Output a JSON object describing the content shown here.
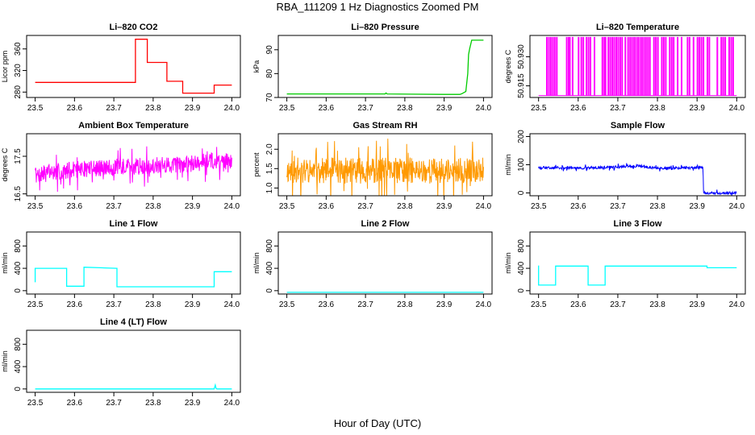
{
  "page": {
    "title": "RBA_111209  1 Hz Diagnostics Zoomed PM",
    "xlabel": "Hour of Day (UTC)"
  },
  "chart_data": [
    {
      "type": "line",
      "title": "Li–820 CO2",
      "xlabel": "",
      "ylabel": "Licor ppm",
      "xlim": [
        23.5,
        24.0
      ],
      "ylim": [
        270,
        385
      ],
      "xticks": [
        23.5,
        23.6,
        23.7,
        23.8,
        23.9,
        24.0
      ],
      "xtick_labels": [
        "23.5",
        "23.6",
        "23.7",
        "23.8",
        "23.9",
        "24.0"
      ],
      "yticks": [
        280,
        320,
        360
      ],
      "ytick_labels": [
        "280",
        "320",
        "360"
      ],
      "series": [
        {
          "name": "CO2",
          "color": "#ff0000",
          "style": "line",
          "x": [
            23.5,
            23.755,
            23.755,
            23.785,
            23.785,
            23.835,
            23.835,
            23.875,
            23.875,
            23.955,
            23.955,
            24.0
          ],
          "y": [
            298,
            298,
            378,
            378,
            335,
            335,
            300,
            300,
            278,
            278,
            293,
            293
          ]
        }
      ]
    },
    {
      "type": "line",
      "title": "Li–820 Pressure",
      "xlabel": "",
      "ylabel": "kPa",
      "xlim": [
        23.5,
        24.0
      ],
      "ylim": [
        70,
        96
      ],
      "xticks": [
        23.5,
        23.6,
        23.7,
        23.8,
        23.9,
        24.0
      ],
      "xtick_labels": [
        "23.5",
        "23.6",
        "23.7",
        "23.8",
        "23.9",
        "24.0"
      ],
      "yticks": [
        70,
        80,
        90
      ],
      "ytick_labels": [
        "70",
        "80",
        "90"
      ],
      "series": [
        {
          "name": "Pressure",
          "color": "#00cc00",
          "style": "line",
          "x": [
            23.5,
            23.75,
            23.752,
            23.755,
            23.9,
            23.94,
            23.945,
            23.955,
            23.96,
            23.962,
            23.965,
            23.97,
            24.0
          ],
          "y": [
            71.5,
            71.5,
            71.9,
            71.5,
            71.3,
            71.3,
            71.6,
            72.5,
            80,
            88,
            90.5,
            94,
            94
          ]
        }
      ]
    },
    {
      "type": "line",
      "title": "Li–820 Temperature",
      "xlabel": "",
      "ylabel": "degrees C",
      "xlim": [
        23.5,
        24.0
      ],
      "ylim": [
        50.909,
        50.941
      ],
      "xticks": [
        23.5,
        23.6,
        23.7,
        23.8,
        23.9,
        24.0
      ],
      "xtick_labels": [
        "23.5",
        "23.6",
        "23.7",
        "23.8",
        "23.9",
        "24.0"
      ],
      "yticks": [
        50.915,
        50.93
      ],
      "ytick_labels": [
        "50.915",
        "50.930"
      ],
      "series": [
        {
          "name": "Temperature",
          "color": "#ff00ff",
          "style": "toggle",
          "levels": [
            50.91,
            50.94
          ],
          "high_x": [
            23.52,
            23.525,
            23.53,
            23.535,
            23.54,
            23.545,
            23.57,
            23.575,
            23.578,
            23.585,
            23.6,
            23.607,
            23.612,
            23.62,
            23.625,
            23.63,
            23.64,
            23.66,
            23.665,
            23.668,
            23.675,
            23.68,
            23.685,
            23.69,
            23.695,
            23.7,
            23.705,
            23.71,
            23.718,
            23.725,
            23.73,
            23.735,
            23.74,
            23.745,
            23.75,
            23.755,
            23.76,
            23.765,
            23.77,
            23.775,
            23.78,
            23.79,
            23.795,
            23.8,
            23.81,
            23.815,
            23.82,
            23.83,
            23.835,
            23.84,
            23.85,
            23.86,
            23.875,
            23.88,
            23.89,
            23.9,
            23.905,
            23.91,
            23.915,
            23.925,
            23.93,
            23.95,
            23.96,
            23.965,
            23.97,
            23.98,
            23.985,
            23.99
          ]
        }
      ]
    },
    {
      "type": "line",
      "title": "Ambient Box Temperature",
      "xlabel": "",
      "ylabel": "degrees C",
      "xlim": [
        23.5,
        24.0
      ],
      "ylim": [
        16.45,
        18.1
      ],
      "xticks": [
        23.5,
        23.6,
        23.7,
        23.8,
        23.9,
        24.0
      ],
      "xtick_labels": [
        "23.5",
        "23.6",
        "23.7",
        "23.8",
        "23.9",
        "24.0"
      ],
      "yticks": [
        16.5,
        17.5
      ],
      "ytick_labels": [
        "16.5",
        "17.5"
      ],
      "series": [
        {
          "name": "Ambient",
          "color": "#ff00ff",
          "style": "noisy",
          "x": [
            23.5,
            23.6,
            23.7,
            23.8,
            23.9,
            23.95,
            24.0
          ],
          "y": [
            17.0,
            17.15,
            17.2,
            17.25,
            17.3,
            17.4,
            17.35
          ],
          "noise": 0.28,
          "seed": 7
        }
      ]
    },
    {
      "type": "line",
      "title": "Gas Stream RH",
      "xlabel": "",
      "ylabel": "percent",
      "xlim": [
        23.5,
        24.0
      ],
      "ylim": [
        0.8,
        2.4
      ],
      "xticks": [
        23.5,
        23.6,
        23.7,
        23.8,
        23.9,
        24.0
      ],
      "xtick_labels": [
        "23.5",
        "23.6",
        "23.7",
        "23.8",
        "23.9",
        "24.0"
      ],
      "yticks": [
        1.0,
        1.5,
        2.0
      ],
      "ytick_labels": [
        "1.0",
        "1.5",
        "2.0"
      ],
      "series": [
        {
          "name": "RH",
          "color": "#ff9900",
          "style": "noisy",
          "x": [
            23.5,
            24.0
          ],
          "y": [
            1.45,
            1.45
          ],
          "noise": 0.42,
          "seed": 11
        }
      ]
    },
    {
      "type": "line",
      "title": "Sample Flow",
      "xlabel": "",
      "ylabel": "ml/min",
      "xlim": [
        23.5,
        24.0
      ],
      "ylim": [
        -10,
        210
      ],
      "xticks": [
        23.5,
        23.6,
        23.7,
        23.8,
        23.9,
        24.0
      ],
      "xtick_labels": [
        "23.5",
        "23.6",
        "23.7",
        "23.8",
        "23.9",
        "24.0"
      ],
      "yticks": [
        0,
        100,
        200
      ],
      "ytick_labels": [
        "0",
        "100",
        "200"
      ],
      "series": [
        {
          "name": "Sample Flow",
          "color": "#0000ff",
          "style": "noisy",
          "x": [
            23.5,
            23.6,
            23.7,
            23.75,
            23.8,
            23.915,
            23.916,
            24.0
          ],
          "y": [
            90,
            88,
            92,
            96,
            88,
            90,
            0,
            0
          ],
          "noise": 6,
          "seed": 3
        }
      ]
    },
    {
      "type": "line",
      "title": "Line 1 Flow",
      "xlabel": "",
      "ylabel": "ml/min",
      "xlim": [
        23.5,
        24.0
      ],
      "ylim": [
        -60,
        1050
      ],
      "xticks": [
        23.5,
        23.6,
        23.7,
        23.8,
        23.9,
        24.0
      ],
      "xtick_labels": [
        "23.5",
        "23.6",
        "23.7",
        "23.8",
        "23.9",
        "24.0"
      ],
      "yticks": [
        0,
        400,
        800
      ],
      "ytick_labels": [
        "0",
        "400",
        "800"
      ],
      "series": [
        {
          "name": "Line 1",
          "color": "#00ffff",
          "style": "line",
          "x": [
            23.5,
            23.5,
            23.58,
            23.58,
            23.624,
            23.624,
            23.708,
            23.708,
            23.955,
            23.955,
            24.0
          ],
          "y": [
            150,
            400,
            400,
            80,
            80,
            420,
            400,
            70,
            70,
            340,
            340
          ]
        }
      ]
    },
    {
      "type": "line",
      "title": "Line 2 Flow",
      "xlabel": "",
      "ylabel": "ml/min",
      "xlim": [
        23.5,
        24.0
      ],
      "ylim": [
        -60,
        1050
      ],
      "xticks": [
        23.5,
        23.6,
        23.7,
        23.8,
        23.9,
        24.0
      ],
      "xtick_labels": [
        "23.5",
        "23.6",
        "23.7",
        "23.8",
        "23.9",
        "24.0"
      ],
      "yticks": [
        0,
        400,
        800
      ],
      "ytick_labels": [
        "0",
        "400",
        "800"
      ],
      "series": [
        {
          "name": "Line 2",
          "color": "#00ffff",
          "style": "line",
          "x": [
            23.5,
            24.0
          ],
          "y": [
            -30,
            -30
          ]
        }
      ]
    },
    {
      "type": "line",
      "title": "Line 3 Flow",
      "xlabel": "",
      "ylabel": "ml/min",
      "xlim": [
        23.5,
        24.0
      ],
      "ylim": [
        -60,
        1050
      ],
      "xticks": [
        23.5,
        23.6,
        23.7,
        23.8,
        23.9,
        24.0
      ],
      "xtick_labels": [
        "23.5",
        "23.6",
        "23.7",
        "23.8",
        "23.9",
        "24.0"
      ],
      "yticks": [
        0,
        400,
        800
      ],
      "ytick_labels": [
        "0",
        "400",
        "800"
      ],
      "series": [
        {
          "name": "Line 3",
          "color": "#00ffff",
          "style": "line",
          "x": [
            23.5,
            23.5,
            23.543,
            23.543,
            23.625,
            23.625,
            23.668,
            23.668,
            23.925,
            23.925,
            24.0
          ],
          "y": [
            450,
            100,
            100,
            440,
            440,
            100,
            100,
            440,
            440,
            410,
            410
          ]
        }
      ]
    },
    {
      "type": "line",
      "title": "Line 4 (LT) Flow",
      "xlabel": "",
      "ylabel": "ml/min",
      "xlim": [
        23.5,
        24.0
      ],
      "ylim": [
        -60,
        1050
      ],
      "xticks": [
        23.5,
        23.6,
        23.7,
        23.8,
        23.9,
        24.0
      ],
      "xtick_labels": [
        "23.5",
        "23.6",
        "23.7",
        "23.8",
        "23.9",
        "24.0"
      ],
      "yticks": [
        0,
        400,
        800
      ],
      "ytick_labels": [
        "0",
        "400",
        "800"
      ],
      "series": [
        {
          "name": "Line 4",
          "color": "#00ffff",
          "style": "line",
          "x": [
            23.5,
            23.955,
            23.958,
            23.96,
            23.962,
            24.0
          ],
          "y": [
            0,
            0,
            70,
            10,
            0,
            0
          ]
        }
      ]
    }
  ]
}
